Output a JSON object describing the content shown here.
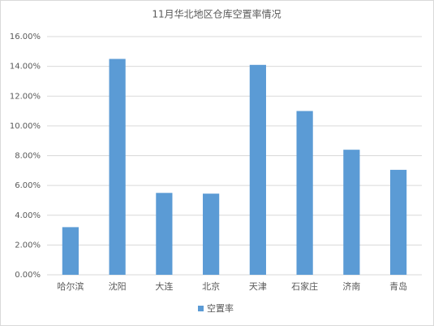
{
  "chart_data": {
    "type": "bar",
    "title": "11月华北地区仓库空置率情况",
    "categories": [
      "哈尔滨",
      "沈阳",
      "大连",
      "北京",
      "天津",
      "石家庄",
      "济南",
      "青岛"
    ],
    "series": [
      {
        "name": "空置率",
        "color": "#5b9bd5",
        "values": [
          3.2,
          14.5,
          5.5,
          5.45,
          14.1,
          11.0,
          8.4,
          7.05
        ]
      }
    ],
    "ylim": [
      0,
      16
    ],
    "yticks": [
      {
        "value": 0,
        "label": "0.00%"
      },
      {
        "value": 2,
        "label": "2.00%"
      },
      {
        "value": 4,
        "label": "4.00%"
      },
      {
        "value": 6,
        "label": "6.00%"
      },
      {
        "value": 8,
        "label": "8.00%"
      },
      {
        "value": 10,
        "label": "10.00%"
      },
      {
        "value": 12,
        "label": "12.00%"
      },
      {
        "value": 14,
        "label": "14.00%"
      },
      {
        "value": 16,
        "label": "16.00%"
      }
    ],
    "grid": true,
    "legend": "bottom"
  }
}
